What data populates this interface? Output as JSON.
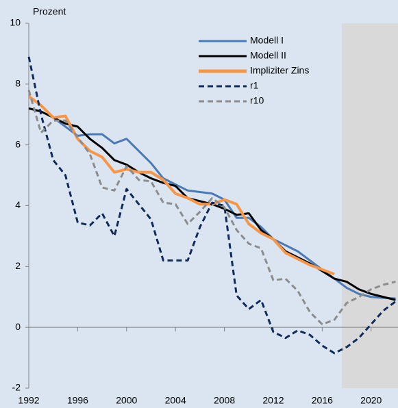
{
  "chart_data": {
    "type": "line",
    "y_label": "Prozent",
    "x": [
      1992,
      1993,
      1994,
      1995,
      1996,
      1997,
      1998,
      1999,
      2000,
      2001,
      2002,
      2003,
      2004,
      2005,
      2006,
      2007,
      2008,
      2009,
      2010,
      2011,
      2012,
      2013,
      2014,
      2015,
      2016,
      2017,
      2018,
      2019,
      2020,
      2021,
      2022
    ],
    "series": [
      {
        "name": "Modell I",
        "color": "#4a7ab5",
        "dash": false,
        "values": [
          7.6,
          7.3,
          6.9,
          6.6,
          6.3,
          6.35,
          6.35,
          6.05,
          6.2,
          5.8,
          5.4,
          4.9,
          4.7,
          4.5,
          4.45,
          4.4,
          4.2,
          3.6,
          3.6,
          3.3,
          2.9,
          2.7,
          2.5,
          2.2,
          1.9,
          1.6,
          1.3,
          1.1,
          1.0,
          0.97,
          0.95
        ]
      },
      {
        "name": "Modell II",
        "color": "#000000",
        "dash": false,
        "values": [
          7.2,
          7.1,
          6.9,
          6.7,
          6.6,
          6.2,
          5.9,
          5.5,
          5.35,
          5.1,
          4.9,
          4.75,
          4.65,
          4.25,
          4.15,
          4.05,
          3.9,
          3.7,
          3.75,
          3.2,
          2.9,
          2.5,
          2.3,
          2.1,
          1.85,
          1.6,
          1.5,
          1.25,
          1.1,
          1.0,
          0.9
        ]
      },
      {
        "name": "Impliziter Zins",
        "color": "#f79646",
        "dash": false,
        "values": [
          7.6,
          7.3,
          6.9,
          6.95,
          6.2,
          5.8,
          5.6,
          5.1,
          5.2,
          5.1,
          5.1,
          4.85,
          4.4,
          4.25,
          4.05,
          4.05,
          4.2,
          4.05,
          3.4,
          3.1,
          2.9,
          2.45,
          2.25,
          2.05,
          1.9,
          1.75,
          null,
          null,
          null,
          null,
          null
        ]
      },
      {
        "name": "r1",
        "color": "#0f2b5b",
        "dash": true,
        "values": [
          8.9,
          7.0,
          5.5,
          5.0,
          3.45,
          3.35,
          3.75,
          3.0,
          4.55,
          4.05,
          3.55,
          2.2,
          2.2,
          2.2,
          3.3,
          4.1,
          4.0,
          1.05,
          0.6,
          0.9,
          -0.15,
          -0.35,
          -0.1,
          -0.25,
          -0.6,
          -0.85,
          -0.65,
          -0.35,
          0.1,
          0.55,
          0.85
        ]
      },
      {
        "name": "r10",
        "color": "#8c8c8c",
        "dash": true,
        "values": [
          7.8,
          6.4,
          6.8,
          6.8,
          6.25,
          5.7,
          4.6,
          4.5,
          5.3,
          4.85,
          4.8,
          4.1,
          4.05,
          3.4,
          3.8,
          4.25,
          3.95,
          3.2,
          2.75,
          2.6,
          1.55,
          1.6,
          1.2,
          0.5,
          0.1,
          0.25,
          0.8,
          1.0,
          1.25,
          1.4,
          1.5
        ]
      }
    ],
    "xlim": [
      1992,
      2022.2
    ],
    "xticks": [
      1992,
      1996,
      2000,
      2004,
      2008,
      2012,
      2016,
      2020
    ],
    "ylim": [
      -2,
      10
    ],
    "yticks": [
      -2,
      0,
      2,
      4,
      6,
      8,
      10
    ],
    "shade_from": 2017.6,
    "shade_color": "#d9d9d9",
    "legend": "upper right"
  }
}
